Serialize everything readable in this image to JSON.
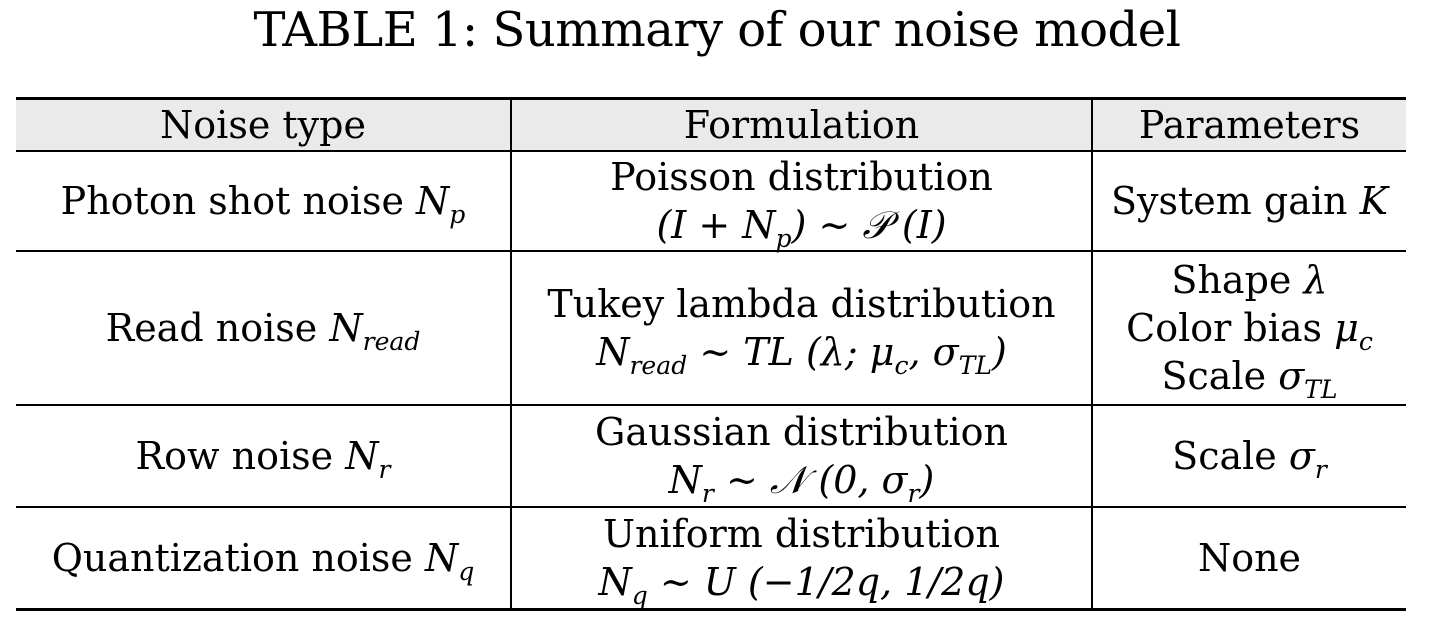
{
  "caption": "TABLE 1: Summary of our noise model",
  "table": {
    "headers": [
      "Noise type",
      "Formulation",
      "Parameters"
    ],
    "rows": [
      {
        "type_text": "Photon shot noise",
        "type_sym": "N",
        "type_sub": "p",
        "formulation_name": "Poisson distribution",
        "formulation_expr_a": "(I + N",
        "formulation_expr_sub": "p",
        "formulation_expr_b": ") ∼ 𝒫 (I)",
        "parameters": [
          {
            "label": "System gain",
            "sym": "K",
            "sub": ""
          }
        ]
      },
      {
        "type_text": "Read noise",
        "type_sym": "N",
        "type_sub": "read",
        "formulation_name": "Tukey lambda distribution",
        "formulation_expr_a": "N",
        "formulation_expr_sub": "read",
        "formulation_expr_b": " ∼ TL (λ; μ",
        "formulation_expr_c_sub": "c",
        "formulation_expr_d": ", σ",
        "formulation_expr_e_sub": "TL",
        "formulation_expr_f": ")",
        "parameters": [
          {
            "label": "Shape",
            "sym": "λ",
            "sub": ""
          },
          {
            "label": "Color bias",
            "sym": "μ",
            "sub": "c"
          },
          {
            "label": "Scale",
            "sym": "σ",
            "sub": "TL"
          }
        ]
      },
      {
        "type_text": "Row noise",
        "type_sym": "N",
        "type_sub": "r",
        "formulation_name": "Gaussian distribution",
        "formulation_expr_a": "N",
        "formulation_expr_sub": "r",
        "formulation_expr_b": " ∼ 𝒩 (0, σ",
        "formulation_expr_c_sub": "r",
        "formulation_expr_d": ")",
        "parameters": [
          {
            "label": "Scale",
            "sym": "σ",
            "sub": "r"
          }
        ]
      },
      {
        "type_text": "Quantization noise",
        "type_sym": "N",
        "type_sub": "q",
        "formulation_name": "Uniform distribution",
        "formulation_expr_a": "N",
        "formulation_expr_sub": "q",
        "formulation_expr_b": " ∼ U (−1/2q, 1/2q)",
        "parameters": [
          {
            "label": "None",
            "sym": "",
            "sub": ""
          }
        ]
      }
    ]
  }
}
